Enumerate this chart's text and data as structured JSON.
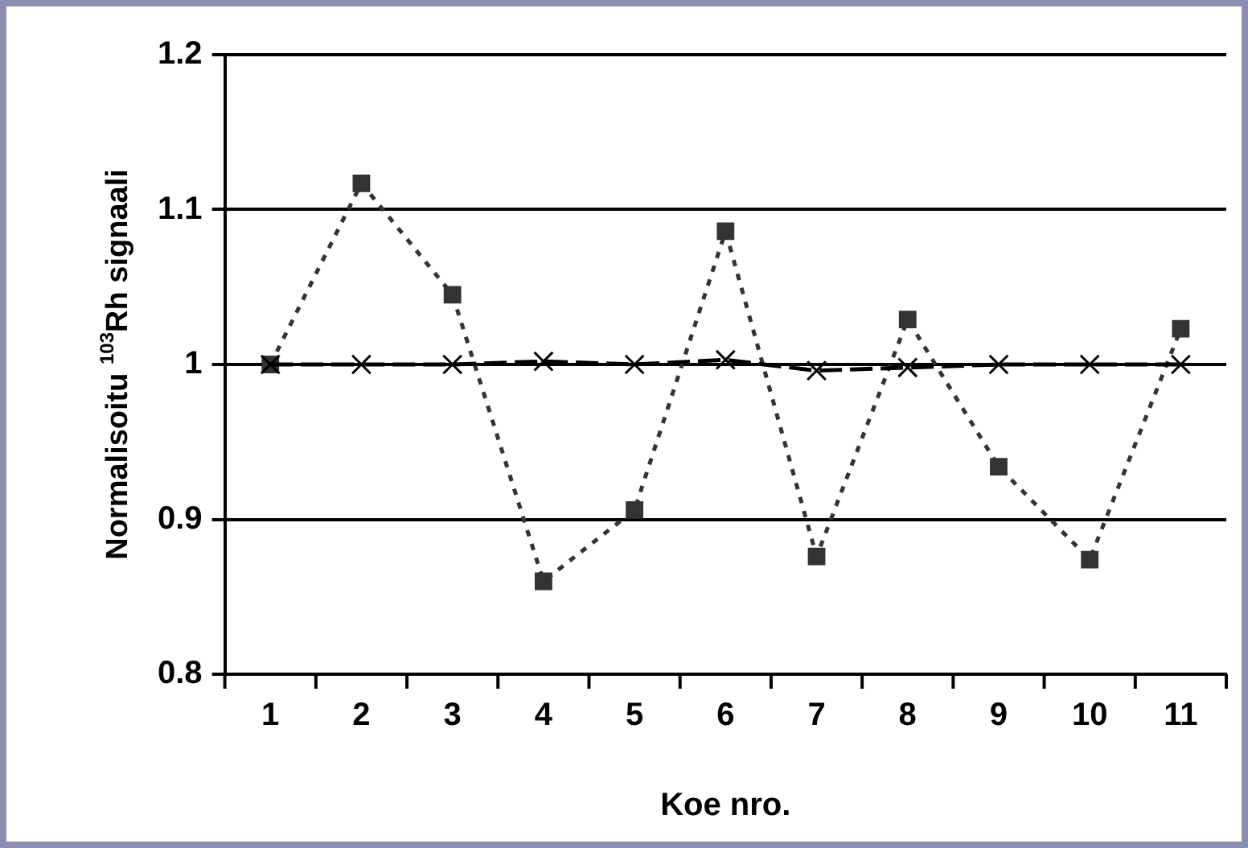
{
  "chart_data": {
    "type": "line",
    "xlabel": "Koe nro.",
    "ylabel": "Normalisoitu $^{103}$Rh signaali",
    "categories": [
      "1",
      "2",
      "3",
      "4",
      "5",
      "6",
      "7",
      "8",
      "9",
      "10",
      "11"
    ],
    "series": [
      {
        "color": "#333333",
        "marker": "square",
        "line_style": "dotted",
        "values": [
          1.0,
          1.117,
          1.045,
          0.86,
          0.906,
          1.086,
          0.876,
          1.029,
          0.934,
          0.874,
          1.023
        ]
      },
      {
        "color": "#000000",
        "marker": "cross",
        "line_style": "dashed",
        "values": [
          1.0,
          1.0,
          1.0,
          1.002,
          1.0,
          1.003,
          0.996,
          0.998,
          1.0,
          1.0,
          1.0
        ]
      }
    ],
    "ylim": [
      0.8,
      1.2
    ],
    "yticks": [
      0.8,
      0.9,
      1,
      1.1,
      1.2
    ],
    "grid": "y",
    "legend": false
  }
}
